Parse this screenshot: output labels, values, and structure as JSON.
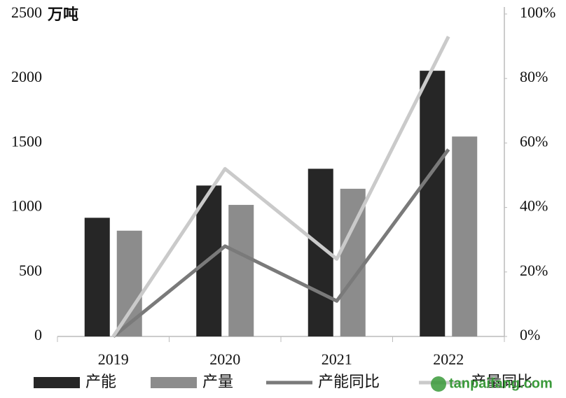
{
  "chart_data": {
    "type": "bar_line",
    "unit_label": "万吨",
    "categories": [
      "2019",
      "2020",
      "2021",
      "2022"
    ],
    "series": [
      {
        "name": "产能",
        "color": "#262626",
        "kind": "bar",
        "values": [
          920,
          1170,
          1300,
          2060
        ]
      },
      {
        "name": "产量",
        "color": "#8c8c8c",
        "kind": "bar",
        "values": [
          820,
          1020,
          1145,
          1550
        ]
      },
      {
        "name": "产能同比",
        "color": "#7a7a7a",
        "kind": "line",
        "axis": "y2",
        "values": [
          0,
          28,
          11,
          58
        ]
      },
      {
        "name": "产量同比",
        "color": "#cacaca",
        "kind": "line",
        "axis": "y2",
        "values": [
          0,
          52,
          24,
          93
        ]
      }
    ],
    "ylim": [
      0,
      2500
    ],
    "yticks": [
      0,
      500,
      1000,
      1500,
      2000,
      2500
    ],
    "y2lim": [
      0,
      100
    ],
    "y2ticks": [
      {
        "value": 0,
        "label": "0%"
      },
      {
        "value": 20,
        "label": "20%"
      },
      {
        "value": 40,
        "label": "40%"
      },
      {
        "value": 60,
        "label": "60%"
      },
      {
        "value": 80,
        "label": "80%"
      },
      {
        "value": 100,
        "label": "100%"
      }
    ],
    "watermark": "tanpaifang.com"
  }
}
